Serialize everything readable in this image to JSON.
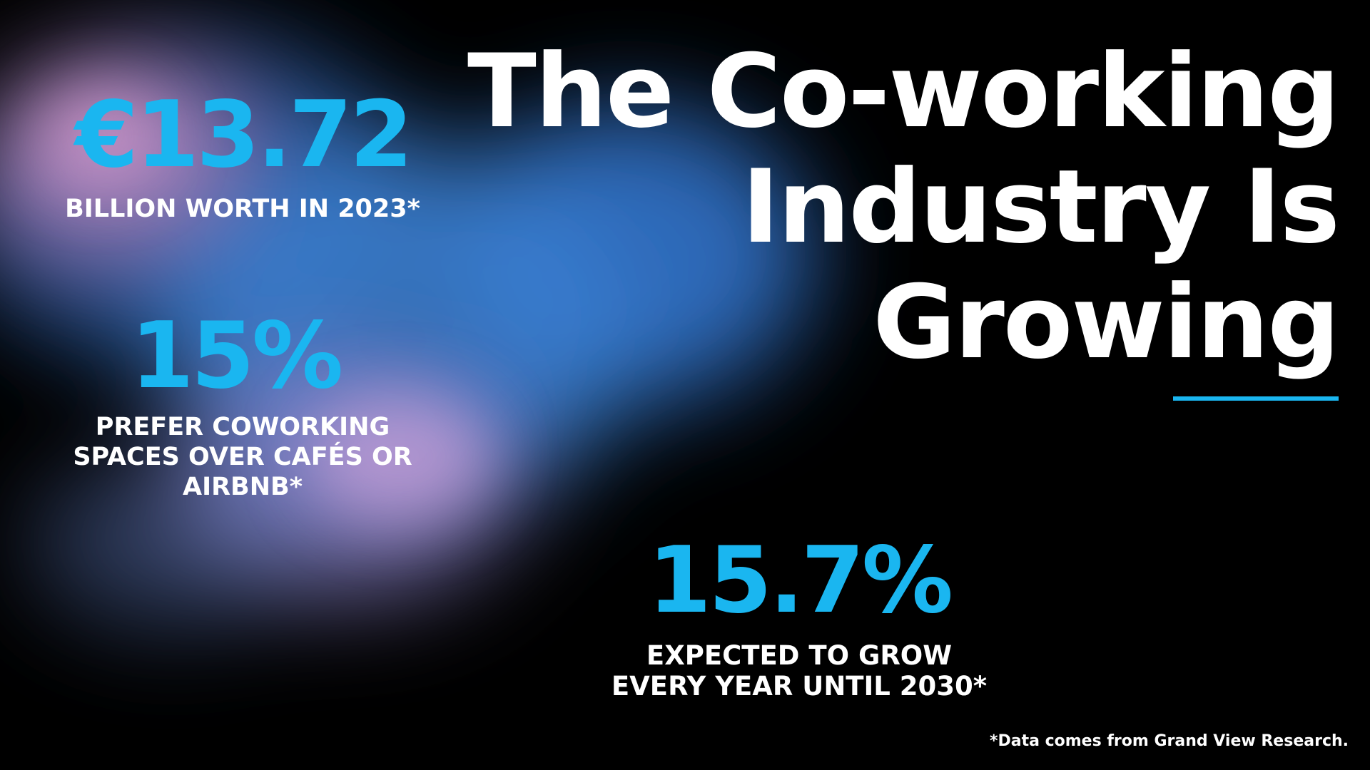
{
  "slide": {
    "title_lines": [
      "The Co-working",
      "Industry Is",
      "Growing"
    ],
    "stats": [
      {
        "value": "€13.72",
        "label": "BILLION WORTH IN 2023*"
      },
      {
        "value": "15%",
        "label_lines": [
          "PREFER COWORKING",
          "SPACES OVER CAFÉS OR",
          "AIRBNB*"
        ]
      },
      {
        "value": "15.7%",
        "label_lines": [
          "EXPECTED TO GROW",
          "EVERY YEAR UNTIL 2030*"
        ]
      }
    ],
    "footnote": "*Data comes from Grand View Research."
  },
  "colors": {
    "background": "#000000",
    "accent": "#1ab6f0",
    "text": "#ffffff",
    "blob_blue": "#3a7fd0",
    "blob_pink": "#c98fc4"
  }
}
